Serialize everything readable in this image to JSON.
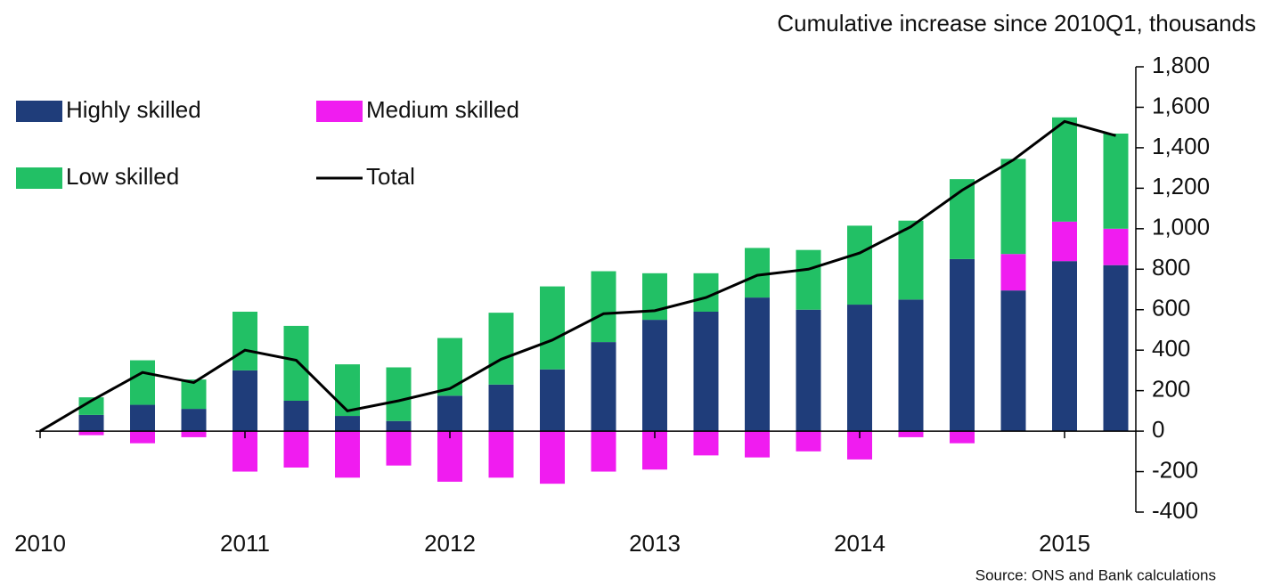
{
  "chart_data": {
    "type": "bar",
    "title": "Cumulative increase since 2010Q1, thousands",
    "source": "Source: ONS and Bank calculations",
    "categories": [
      "2010",
      null,
      null,
      null,
      "2011",
      null,
      null,
      null,
      "2012",
      null,
      null,
      null,
      "2013",
      null,
      null,
      null,
      "2014",
      null,
      null,
      null,
      "2015",
      null
    ],
    "series": [
      {
        "name": "Highly skilled",
        "color": "#1f3d7a",
        "values": [
          null,
          80,
          130,
          110,
          300,
          150,
          75,
          50,
          175,
          230,
          305,
          440,
          550,
          590,
          660,
          600,
          625,
          650,
          850,
          695,
          840,
          820
        ]
      },
      {
        "name": "Medium skilled",
        "color": "#f01cf0",
        "values": [
          null,
          -20,
          -60,
          -30,
          -200,
          -180,
          -230,
          -170,
          -250,
          -230,
          -260,
          -200,
          -190,
          -120,
          -130,
          -100,
          -140,
          -30,
          -60,
          180,
          195,
          180
        ]
      },
      {
        "name": "Low skilled",
        "color": "#22c065",
        "values": [
          null,
          87,
          220,
          145,
          290,
          370,
          255,
          265,
          285,
          355,
          410,
          350,
          230,
          190,
          245,
          295,
          390,
          390,
          395,
          470,
          515,
          470
        ]
      },
      {
        "name": "Total",
        "color": "#000000",
        "line": true,
        "values": [
          0,
          150,
          290,
          240,
          400,
          350,
          100,
          150,
          210,
          355,
          450,
          580,
          595,
          660,
          770,
          800,
          880,
          1010,
          1190,
          1340,
          1530,
          1460
        ]
      }
    ],
    "ylim": [
      -400,
      1800
    ],
    "yticks": [
      -400,
      -200,
      0,
      200,
      400,
      600,
      800,
      {
        "value": 1000,
        "label": "1,000"
      },
      {
        "value": 1200,
        "label": "1,200"
      },
      {
        "value": 1400,
        "label": "1,400"
      },
      {
        "value": 1600,
        "label": "1,600"
      },
      {
        "value": 1800,
        "label": "1,800"
      }
    ]
  }
}
